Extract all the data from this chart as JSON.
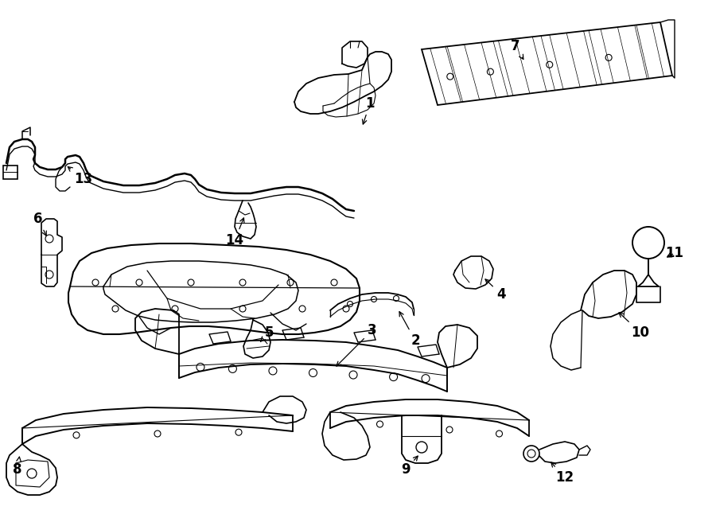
{
  "bg_color": "#ffffff",
  "line_color": "#000000",
  "lw": 1.1,
  "fig_w": 9.0,
  "fig_h": 6.61,
  "dpi": 100
}
